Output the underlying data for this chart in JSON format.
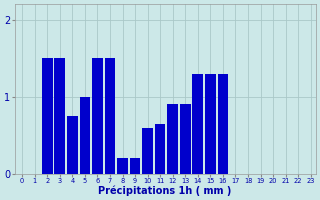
{
  "hours": [
    0,
    1,
    2,
    3,
    4,
    5,
    6,
    7,
    8,
    9,
    10,
    11,
    12,
    13,
    14,
    15,
    16,
    17,
    18,
    19,
    20,
    21,
    22,
    23
  ],
  "values": [
    0,
    0,
    1.5,
    1.5,
    0.75,
    1.0,
    1.5,
    1.5,
    0.2,
    0.2,
    0.6,
    0.65,
    0.9,
    0.9,
    1.3,
    1.3,
    1.3,
    0,
    0,
    0,
    0,
    0,
    0,
    0
  ],
  "bar_color": "#0000cc",
  "bg_color": "#cce8e8",
  "grid_color": "#aac8c8",
  "xlabel": "Précipitations 1h ( mm )",
  "xlabel_color": "#0000aa",
  "tick_color": "#0000aa",
  "ylim": [
    0,
    2.2
  ],
  "yticks": [
    0,
    1,
    2
  ],
  "xlim": [
    -0.6,
    23.4
  ],
  "figwidth": 3.2,
  "figheight": 2.0,
  "dpi": 100
}
